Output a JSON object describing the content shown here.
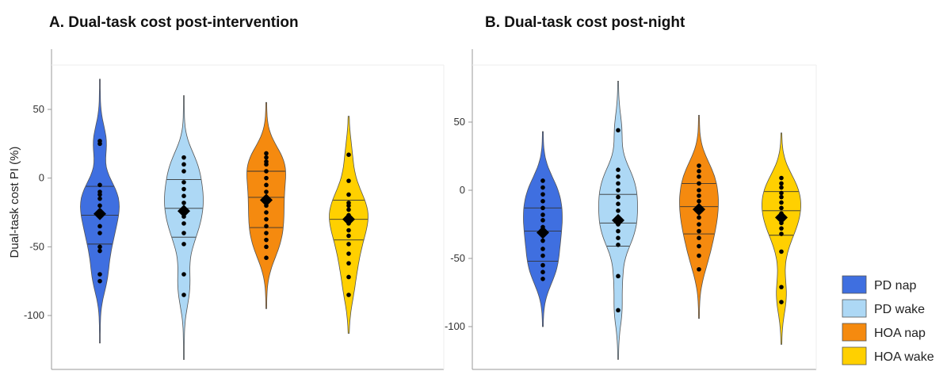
{
  "chart_data": [
    {
      "type": "violin",
      "title": "A. Dual-task cost post-intervention",
      "ylabel": "Dual-task cost PI (%)",
      "xlabel": "",
      "ylim": [
        -135,
        80
      ],
      "yticks": [
        50,
        0,
        -50,
        -100
      ],
      "grid": false,
      "series": [
        {
          "name": "PD nap",
          "color": "#3F6FE0",
          "range": [
            -120,
            72
          ],
          "quartiles": [
            -48,
            -27,
            -6
          ],
          "mean": -26,
          "points": [
            27,
            25,
            -5,
            -10,
            -12,
            -15,
            -20,
            -27,
            -28,
            -35,
            -40,
            -50,
            -53,
            -70,
            -75
          ]
        },
        {
          "name": "PD wake",
          "color": "#ADD8F5",
          "range": [
            -132,
            60
          ],
          "quartiles": [
            -43,
            -22,
            -1
          ],
          "mean": -24,
          "points": [
            15,
            10,
            5,
            -3,
            -8,
            -13,
            -18,
            -22,
            -28,
            -33,
            -40,
            -48,
            -70,
            -85
          ]
        },
        {
          "name": "HOA nap",
          "color": "#F58A0F",
          "range": [
            -95,
            55
          ],
          "quartiles": [
            -36,
            -14,
            5
          ],
          "mean": -16,
          "points": [
            18,
            15,
            12,
            10,
            5,
            0,
            -5,
            -10,
            -15,
            -20,
            -25,
            -30,
            -35,
            -40,
            -45,
            -50,
            -58
          ]
        },
        {
          "name": "HOA wake",
          "color": "#FFD000",
          "range": [
            -113,
            45
          ],
          "quartiles": [
            -45,
            -30,
            -16
          ],
          "mean": -30,
          "points": [
            17,
            -2,
            -12,
            -18,
            -20,
            -23,
            -27,
            -30,
            -33,
            -38,
            -42,
            -48,
            -55,
            -62,
            -72,
            -85
          ]
        }
      ]
    },
    {
      "type": "violin",
      "title": "B. Dual-task cost post-night",
      "ylabel": "",
      "xlabel": "",
      "ylim": [
        -125,
        90
      ],
      "yticks": [
        50,
        0,
        -50,
        -100
      ],
      "grid": false,
      "series": [
        {
          "name": "PD nap",
          "color": "#3F6FE0",
          "range": [
            -100,
            43
          ],
          "quartiles": [
            -52,
            -30,
            -13
          ],
          "mean": -31,
          "points": [
            7,
            2,
            -3,
            -8,
            -13,
            -18,
            -22,
            -27,
            -31,
            -37,
            -43,
            -48,
            -55,
            -60,
            -65
          ]
        },
        {
          "name": "PD wake",
          "color": "#ADD8F5",
          "range": [
            -124,
            80
          ],
          "quartiles": [
            -41,
            -24,
            -3
          ],
          "mean": -22,
          "points": [
            44,
            15,
            10,
            5,
            0,
            -5,
            -10,
            -15,
            -20,
            -25,
            -30,
            -35,
            -40,
            -63,
            -88
          ]
        },
        {
          "name": "HOA nap",
          "color": "#F58A0F",
          "range": [
            -94,
            55
          ],
          "quartiles": [
            -32,
            -12,
            5
          ],
          "mean": -14,
          "points": [
            18,
            14,
            10,
            5,
            0,
            -4,
            -8,
            -12,
            -16,
            -20,
            -25,
            -30,
            -35,
            -41,
            -48,
            -58
          ]
        },
        {
          "name": "HOA wake",
          "color": "#FFD000",
          "range": [
            -113,
            42
          ],
          "quartiles": [
            -33,
            -15,
            -1
          ],
          "mean": -20,
          "points": [
            9,
            5,
            2,
            -2,
            -5,
            -9,
            -13,
            -17,
            -20,
            -24,
            -28,
            -32,
            -45,
            -71,
            -82
          ]
        }
      ]
    }
  ],
  "legend": {
    "position": "bottom-right",
    "items": [
      {
        "label": "PD nap",
        "color": "#3F6FE0"
      },
      {
        "label": "PD wake",
        "color": "#ADD8F5"
      },
      {
        "label": "HOA nap",
        "color": "#F58A0F"
      },
      {
        "label": "HOA wake",
        "color": "#FFD000"
      }
    ]
  }
}
